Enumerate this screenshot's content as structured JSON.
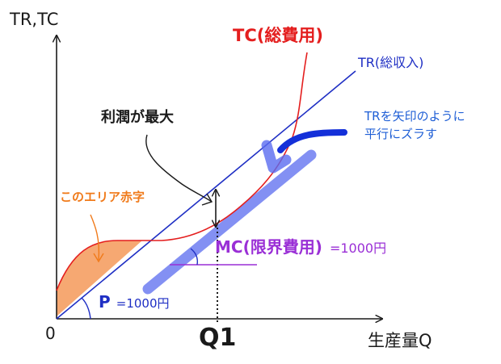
{
  "labels": {
    "y_axis": "TR,TC",
    "x_axis": "生産量Q",
    "origin": "0",
    "q1": "Q1",
    "tc": "TC(総費用)",
    "tr": "TR(総収入)",
    "max_profit": "利潤が最大",
    "shift_note_line1": "TRを矢印のように",
    "shift_note_line2": "平行にズラす",
    "loss_area": "このエリア赤字",
    "mc_prefix": "MC(限界費用)",
    "mc_value": "=1000円",
    "p_prefix": "P",
    "p_value": "=1000円"
  },
  "colors": {
    "axis": "#1a1a1a",
    "tc": "#e41e1e",
    "tr": "#1f2fc4",
    "shifted_tr": "#5a6cf0",
    "arrow_thick": "#1430d9",
    "loss_fill": "#f5a36a",
    "loss_text": "#f07a1a",
    "mc": "#9a2fd6",
    "note_text": "#1f5fd6"
  }
}
